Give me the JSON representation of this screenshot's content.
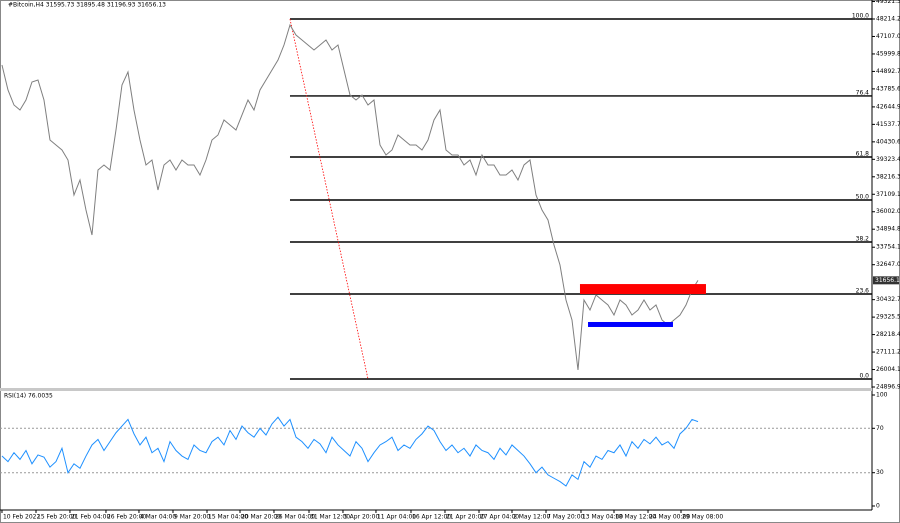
{
  "chart_data": [
    {
      "type": "line",
      "title": "#Bitcoin,H4  31595.73 31895.48 31196.93 31656.13",
      "series": [
        {
          "color": "#7f7f7f",
          "values": [
            45300,
            43716,
            42765,
            42448,
            43082,
            44222,
            44349,
            43082,
            40548,
            40231,
            39914,
            39280,
            37063,
            38013,
            36112,
            34528,
            38647,
            38964,
            38647,
            41181,
            44032,
            44856,
            42448,
            40548,
            38964,
            39280,
            37380,
            38964,
            39280,
            38647,
            39280,
            38964,
            38964,
            38330,
            39280,
            40548,
            40864,
            41815,
            41498,
            41181,
            42132,
            43082,
            42448,
            43716,
            44349,
            44983,
            45616,
            46567,
            47834,
            47200,
            46884,
            46567,
            46250,
            46567,
            46884,
            46250,
            46567,
            44983,
            43399,
            43082,
            43399,
            42765,
            43082,
            40231,
            39597,
            39914,
            40864,
            40548,
            40231,
            40231,
            39914,
            40548,
            41815,
            42448,
            39914,
            39597,
            39597,
            38964,
            39280,
            38330,
            39597,
            38964,
            38964,
            38330,
            38330,
            38647,
            38013,
            38964,
            39280,
            37063,
            36112,
            35479,
            33895,
            32628,
            30410,
            29143,
            25975,
            30410,
            29776,
            30727,
            30410,
            30093,
            29460,
            30410,
            30093,
            29460,
            29776,
            30410,
            29776,
            30093,
            29143,
            28826,
            29143,
            29460,
            30093,
            31044,
            31656
          ]
        }
      ],
      "xlim": [
        -0.33,
        145
      ],
      "xticks": [
        {
          "value": 0,
          "label": "10 Feb 2022"
        },
        {
          "value": 5.67,
          "label": "15 Feb 20:00"
        },
        {
          "value": 11.33,
          "label": "21 Feb 04:00"
        },
        {
          "value": 17.33,
          "label": "26 Feb 20:00"
        },
        {
          "value": 22.83,
          "label": "4 Mar 04:00"
        },
        {
          "value": 28.5,
          "label": "9 Mar 20:00"
        },
        {
          "value": 34.17,
          "label": "15 Mar 04:00"
        },
        {
          "value": 39.67,
          "label": "20 Mar 20:00"
        },
        {
          "value": 45.33,
          "label": "26 Mar 04:00"
        },
        {
          "value": 51.17,
          "label": "31 Mar 12:00"
        },
        {
          "value": 56.83,
          "label": "5 Apr 20:00"
        },
        {
          "value": 62.33,
          "label": "11 Apr 04:00"
        },
        {
          "value": 68.17,
          "label": "16 Apr 12:00"
        },
        {
          "value": 73.83,
          "label": "21 Apr 20:00"
        },
        {
          "value": 79.5,
          "label": "27 Apr 04:00"
        },
        {
          "value": 85,
          "label": "2 May 12:00"
        },
        {
          "value": 90.67,
          "label": "7 May 20:00"
        },
        {
          "value": 96.5,
          "label": "13 May 04:00"
        },
        {
          "value": 102,
          "label": "18 May 12:00"
        },
        {
          "value": 107.67,
          "label": "24 May 00:00"
        },
        {
          "value": 113.17,
          "label": "29 May 08:00"
        }
      ],
      "ylim": [
        24834,
        49418
      ],
      "yticks": [
        49321.36,
        {
          "value": 48214.2,
          "label": "48214.20"
        },
        47107.05,
        45999.89,
        44892.75,
        {
          "value": 43785.6,
          "label": "43785.60"
        },
        {
          "value": 42644.9,
          "label": "42644.90"
        },
        41537.75,
        {
          "value": 40430.6,
          "label": "40430.60"
        },
        39323.45,
        {
          "value": 38216.3,
          "label": "38216.30"
        },
        37109.15,
        {
          "value": 36002,
          "label": "36002.00"
        },
        34894.85,
        33754.15,
        {
          "value": 32647,
          "label": "32647.00"
        },
        {
          "value": 30432.7,
          "label": "30432.70"
        },
        29325.55,
        {
          "value": 28218.4,
          "label": "28218.40"
        },
        27111.25,
        {
          "value": 26004.1,
          "label": "26004.10"
        },
        24896.95
      ],
      "last_price": 31656.13,
      "fibonacci": {
        "start_x": 48,
        "color": "#000000",
        "levels": [
          {
            "value": 48214,
            "label": "100.0"
          },
          {
            "value": 43340,
            "label": "76.4"
          },
          {
            "value": 39470,
            "label": "61.8"
          },
          {
            "value": 36746,
            "label": "50.0"
          },
          {
            "value": 34085,
            "label": "38.2"
          },
          {
            "value": 30790,
            "label": "23.6"
          },
          {
            "value": 25405,
            "label": "0.0"
          }
        ]
      },
      "trendline": {
        "color": "#ff0000",
        "x": [
          48,
          61
        ],
        "values": [
          48214,
          25405
        ]
      },
      "zones": [
        {
          "color": "#ff0000",
          "x": [
            96.33,
            117.33
          ],
          "values": [
            31420,
            30790
          ]
        },
        {
          "color": "#0000ff",
          "x": [
            97.67,
            111.83
          ],
          "values": [
            29016,
            28700
          ]
        }
      ]
    },
    {
      "type": "line",
      "title": "RSI(14) 76.0035",
      "series": [
        {
          "color": "#1e90ff",
          "values": [
            45,
            40,
            48,
            42,
            50,
            38,
            46,
            44,
            35,
            40,
            52,
            30,
            38,
            34,
            45,
            55,
            60,
            50,
            58,
            66,
            72,
            78,
            65,
            55,
            62,
            48,
            52,
            40,
            58,
            50,
            45,
            42,
            55,
            50,
            48,
            58,
            62,
            55,
            68,
            60,
            72,
            66,
            62,
            70,
            64,
            74,
            80,
            72,
            78,
            62,
            58,
            52,
            60,
            56,
            48,
            62,
            55,
            50,
            45,
            58,
            52,
            40,
            48,
            55,
            58,
            62,
            50,
            55,
            52,
            60,
            65,
            72,
            68,
            58,
            50,
            55,
            48,
            52,
            45,
            55,
            50,
            48,
            42,
            52,
            46,
            55,
            50,
            45,
            38,
            30,
            35,
            28,
            25,
            22,
            18,
            28,
            24,
            40,
            35,
            45,
            42,
            50,
            48,
            55,
            45,
            58,
            52,
            60,
            56,
            62,
            55,
            58,
            52,
            65,
            70,
            78,
            76
          ]
        }
      ],
      "ylim": [
        0,
        100
      ],
      "yticks": [
        100,
        70,
        30,
        0
      ],
      "levels": [
        70,
        30
      ]
    }
  ]
}
